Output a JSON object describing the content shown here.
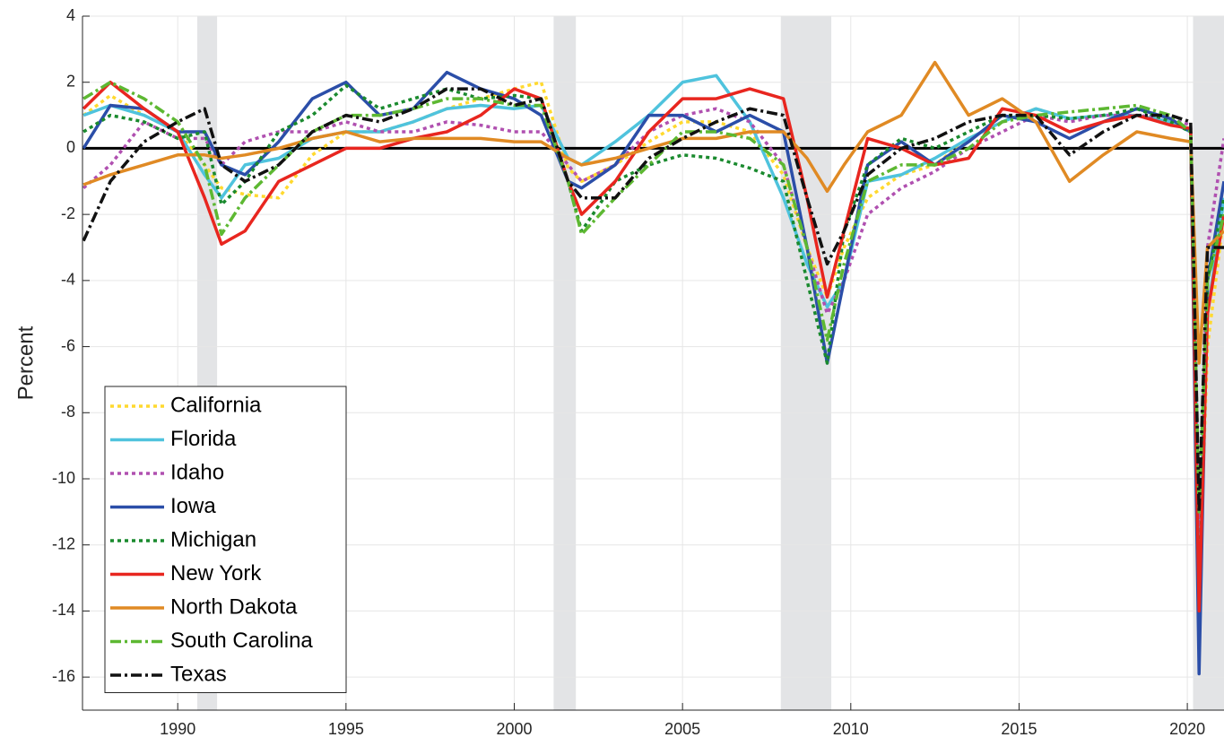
{
  "chart_data": {
    "type": "line",
    "ylabel": "Percent",
    "xlim": [
      1987.17,
      2021.09
    ],
    "ylim": [
      -17,
      4
    ],
    "xticks": [
      1990,
      1995,
      2000,
      2005,
      2010,
      2015,
      2020
    ],
    "yticks": [
      -16,
      -14,
      -12,
      -10,
      -8,
      -6,
      -4,
      -2,
      0,
      2,
      4
    ],
    "grid": true,
    "legend": "lower left",
    "hline": 0,
    "shaded_periods": [
      [
        1990.58,
        1991.17
      ],
      [
        2001.17,
        2001.83
      ],
      [
        2007.92,
        2009.42
      ],
      [
        2020.17,
        2021.09
      ]
    ],
    "x": [
      1987.2,
      1988,
      1989,
      1990,
      1990.8,
      1991.3,
      1992,
      1993,
      1994,
      1995,
      1996,
      1997,
      1998,
      1999,
      2000,
      2000.8,
      2001.6,
      2002,
      2003,
      2004,
      2005,
      2006,
      2007,
      2008,
      2008.7,
      2009.3,
      2009.8,
      2010.5,
      2011.5,
      2012.5,
      2013.5,
      2014.5,
      2015.5,
      2016.5,
      2017.5,
      2018.5,
      2019.5,
      2020.1,
      2020.35,
      2020.6,
      2021.09
    ],
    "series": [
      {
        "name": "California",
        "color": "#ffd92f",
        "dash": "dotted",
        "values": [
          1.0,
          1.6,
          1.0,
          0.5,
          -0.5,
          -1.2,
          -1.4,
          -1.5,
          -0.2,
          0.5,
          0.5,
          0.8,
          1.2,
          1.5,
          1.8,
          2.0,
          -0.6,
          -1.0,
          -0.5,
          0.2,
          0.8,
          0.8,
          0.5,
          -0.8,
          -3.0,
          -4.5,
          -3.0,
          -1.5,
          -0.8,
          -0.5,
          0.3,
          0.8,
          1.2,
          0.9,
          1.0,
          1.0,
          0.8,
          0.5,
          -13.5,
          -6,
          -2
        ]
      },
      {
        "name": "Florida",
        "color": "#4fc3dd",
        "dash": "solid",
        "values": [
          1.0,
          1.3,
          1.0,
          0.5,
          -0.8,
          -1.5,
          -0.5,
          -0.3,
          0.3,
          0.5,
          0.5,
          0.8,
          1.2,
          1.3,
          1.2,
          1.3,
          -0.3,
          -0.5,
          0.2,
          1.0,
          2.0,
          2.2,
          0.8,
          -1.5,
          -3.5,
          -4.8,
          -4.0,
          -1.0,
          -0.8,
          -0.3,
          0.3,
          0.8,
          1.2,
          0.9,
          1.0,
          1.0,
          0.8,
          0.5,
          -12,
          -5,
          -1.5
        ]
      },
      {
        "name": "Idaho",
        "color": "#b050b0",
        "dash": "dotted",
        "values": [
          -1.2,
          -0.5,
          0.8,
          0.3,
          0.3,
          -0.5,
          0.2,
          0.5,
          0.5,
          0.8,
          0.5,
          0.5,
          0.8,
          0.7,
          0.5,
          0.5,
          -0.5,
          -1.0,
          -0.5,
          0.5,
          1.0,
          1.2,
          0.8,
          -0.5,
          -3.0,
          -5.0,
          -4.0,
          -2.0,
          -1.2,
          -0.7,
          0,
          0.5,
          1.0,
          0.8,
          1.0,
          1.0,
          0.9,
          0.7,
          -12,
          -3,
          0.3
        ]
      },
      {
        "name": "Iowa",
        "color": "#2b4ea8",
        "dash": "solid",
        "values": [
          0,
          1.3,
          1.2,
          0.5,
          0.5,
          -0.5,
          -0.8,
          0.2,
          1.5,
          2.0,
          1.0,
          1.2,
          2.3,
          1.8,
          1.5,
          1.0,
          -1.0,
          -1.2,
          -0.5,
          1.0,
          1.0,
          0.5,
          1.0,
          0.5,
          -3.0,
          -6.5,
          -4.0,
          -0.5,
          0.2,
          -0.5,
          0.2,
          1.0,
          0.8,
          0.3,
          0.8,
          1.2,
          0.9,
          0.5,
          -15.9,
          -4,
          -1
        ]
      },
      {
        "name": "Michigan",
        "color": "#1a8a2e",
        "dash": "dotted",
        "values": [
          0.5,
          1.0,
          0.8,
          0.3,
          0.5,
          -1.7,
          -1.0,
          0.5,
          1.0,
          1.9,
          1.2,
          1.5,
          1.8,
          1.5,
          1.6,
          1.5,
          -1.0,
          -2.5,
          -1.0,
          -0.5,
          -0.2,
          -0.3,
          -0.6,
          -1.0,
          -4.0,
          -6.5,
          -2.5,
          -0.5,
          0.3,
          0,
          0.5,
          1.0,
          1.0,
          0.9,
          1.0,
          1.2,
          0.8,
          0.5,
          -14.0,
          -4,
          -1.5
        ]
      },
      {
        "name": "New York",
        "color": "#e8261f",
        "dash": "solid",
        "values": [
          1.2,
          2.0,
          1.2,
          0.5,
          -1.5,
          -2.9,
          -2.5,
          -1.0,
          -0.5,
          0,
          0,
          0.3,
          0.5,
          1.0,
          1.8,
          1.5,
          -1.0,
          -2.0,
          -1.0,
          0.5,
          1.5,
          1.5,
          1.8,
          1.5,
          -1.5,
          -4.5,
          -2.5,
          0.3,
          0,
          -0.5,
          -0.3,
          1.2,
          1.0,
          0.5,
          0.8,
          1.0,
          0.7,
          0.6,
          -14.0,
          -5,
          -2
        ]
      },
      {
        "name": "North Dakota",
        "color": "#e08a24",
        "dash": "solid",
        "values": [
          -1.1,
          -0.8,
          -0.5,
          -0.2,
          -0.2,
          -0.3,
          -0.2,
          0,
          0.3,
          0.5,
          0.2,
          0.3,
          0.3,
          0.3,
          0.2,
          0.2,
          -0.3,
          -0.5,
          -0.3,
          0,
          0.3,
          0.3,
          0.5,
          0.5,
          -0.3,
          -1.3,
          -0.5,
          0.5,
          1.0,
          2.6,
          1.0,
          1.5,
          0.8,
          -1.0,
          -0.2,
          0.5,
          0.3,
          0.2,
          -6.5,
          -3,
          -2.5
        ]
      },
      {
        "name": "South Carolina",
        "color": "#5db832",
        "dash": "dashdot",
        "values": [
          1.5,
          2.0,
          1.5,
          0.8,
          -0.5,
          -2.6,
          -1.5,
          -0.5,
          0.5,
          1.0,
          1.0,
          1.2,
          1.5,
          1.5,
          1.3,
          1.3,
          -1.0,
          -2.6,
          -1.5,
          -0.5,
          0.5,
          0.5,
          0.3,
          -0.5,
          -3.0,
          -5.8,
          -3.5,
          -1.0,
          -0.5,
          -0.5,
          0,
          0.8,
          1.0,
          1.1,
          1.2,
          1.3,
          1.0,
          0.5,
          -11,
          -4,
          -2
        ]
      },
      {
        "name": "Texas",
        "color": "#111111",
        "dash": "dashdot",
        "values": [
          -2.8,
          -1.0,
          0.2,
          0.8,
          1.2,
          -0.5,
          -1.0,
          -0.5,
          0.5,
          1.0,
          0.8,
          1.2,
          1.8,
          1.8,
          1.3,
          1.5,
          -1.0,
          -1.5,
          -1.5,
          -0.3,
          0.3,
          0.8,
          1.2,
          1.0,
          -1.5,
          -3.5,
          -2.5,
          -0.8,
          0,
          0.3,
          0.8,
          1.0,
          1.0,
          -0.2,
          0.5,
          1.0,
          1.0,
          0.8,
          -11,
          -3,
          -3
        ]
      }
    ]
  }
}
